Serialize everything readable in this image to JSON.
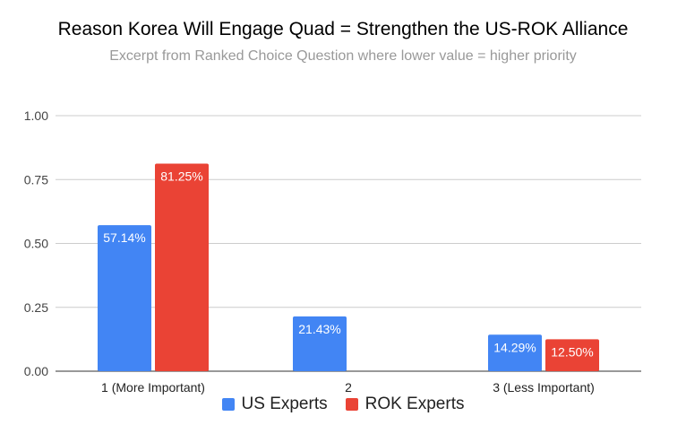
{
  "chart_data": {
    "type": "bar",
    "title": "Reason Korea Will Engage Quad = Strengthen the US-ROK Alliance",
    "subtitle": "Excerpt from Ranked Choice Question where lower value = higher priority",
    "categories": [
      "1 (More Important)",
      "2",
      "3 (Less Important)"
    ],
    "series": [
      {
        "name": "US Experts",
        "color": "#4285f4",
        "values": [
          0.5714,
          0.2143,
          0.1429
        ],
        "labels": [
          "57.14%",
          "21.43%",
          "14.29%"
        ]
      },
      {
        "name": "ROK Experts",
        "color": "#ea4335",
        "values": [
          0.8125,
          null,
          0.125
        ],
        "labels": [
          "81.25%",
          "",
          "12.50%"
        ]
      }
    ],
    "yticks": [
      "0.00",
      "0.25",
      "0.50",
      "0.75",
      "1.00"
    ],
    "ylim": [
      0,
      1
    ],
    "grid": true,
    "legend": "bottom"
  }
}
